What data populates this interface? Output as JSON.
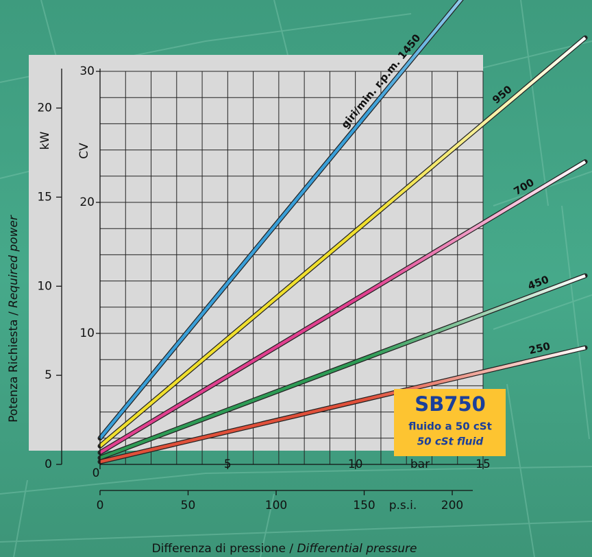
{
  "chart_data": {
    "type": "line",
    "title_left": "Potenza Richiesta / ",
    "title_left_italic": "Required power",
    "xlabel": "Differenza di pressione / ",
    "xlabel_italic": "Differential pressure",
    "ylabel": "kW",
    "y2label": "CV",
    "xunit": "bar",
    "x2unit": "p.s.i.",
    "x": [
      0,
      19
    ],
    "series": [
      {
        "name": "giri/min. r.p.m. 1450",
        "color": "#3a9fd8",
        "axis": "y2",
        "values": [
          2.0,
          47.0
        ]
      },
      {
        "name": "950",
        "color": "#f0df2e",
        "axis": "y2",
        "values": [
          1.4,
          32.56
        ]
      },
      {
        "name": "700",
        "color": "#e0408f",
        "axis": "y2",
        "values": [
          0.9,
          23.1
        ]
      },
      {
        "name": "450",
        "color": "#2e9b55",
        "axis": "y2",
        "values": [
          0.5,
          14.4
        ]
      },
      {
        "name": "250",
        "color": "#e0503a",
        "axis": "y2",
        "values": [
          0.2,
          8.9
        ]
      }
    ],
    "xlim": [
      0,
      15
    ],
    "xticks": [
      0,
      5,
      10,
      15
    ],
    "x2lim": [
      0,
      217.5
    ],
    "x2ticks": [
      0,
      50,
      100,
      150,
      200
    ],
    "ylim": [
      0,
      22.06
    ],
    "yticks": [
      0,
      5,
      10,
      15,
      20
    ],
    "y2lim": [
      0,
      30
    ],
    "y2ticks": [
      10,
      20,
      30
    ],
    "x_gridlines": [
      0,
      1,
      2,
      3,
      4,
      5,
      6,
      7,
      8,
      9,
      10,
      11,
      12,
      13,
      14,
      15
    ],
    "y2_gridlines": [
      0,
      2,
      4,
      6,
      8,
      10,
      12,
      14,
      16,
      18,
      20,
      22,
      24,
      26,
      28,
      30
    ],
    "grid": true,
    "box": {
      "model": "SB750",
      "line1": "fluido a 50 cSt",
      "line2": "50 cSt fluid",
      "color": "#fdc431"
    }
  }
}
